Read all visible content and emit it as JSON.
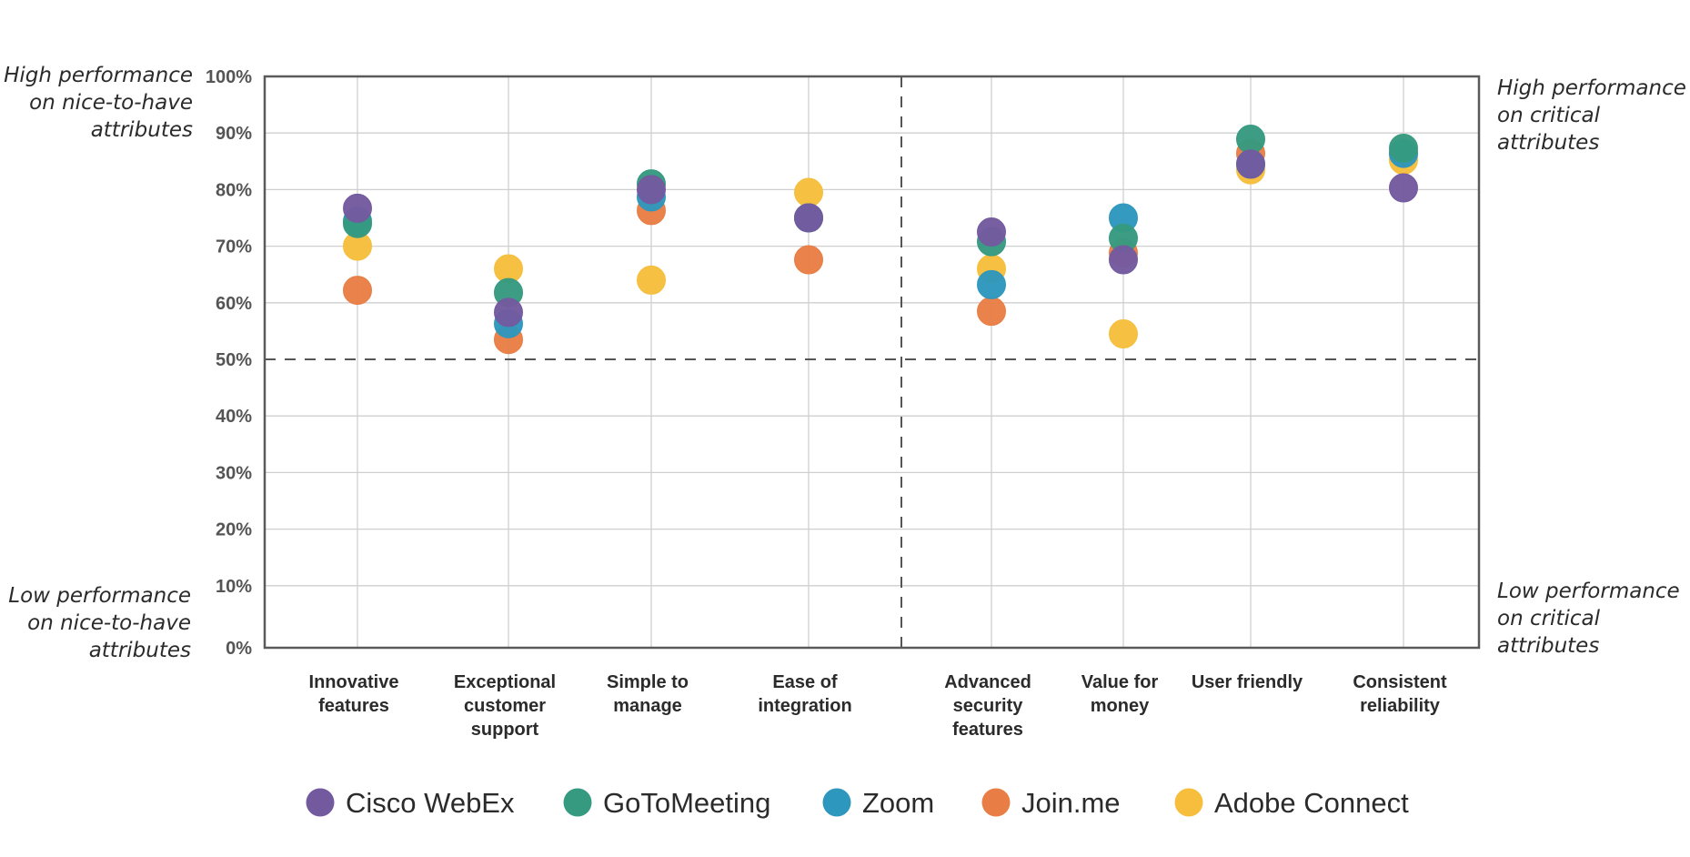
{
  "chart_data": {
    "type": "scatter",
    "title": "",
    "xlabel": "",
    "ylabel": "",
    "ylim": [
      0,
      100
    ],
    "y_ticks": [
      "0%",
      "10%",
      "20%",
      "30%",
      "40%",
      "50%",
      "60%",
      "70%",
      "80%",
      "90%",
      "100%"
    ],
    "grid": true,
    "threshold_y": 50,
    "categories": [
      [
        "Innovative",
        "features"
      ],
      [
        "Exceptional",
        "customer",
        "support"
      ],
      [
        "Simple to",
        "manage"
      ],
      [
        "Ease of",
        "integration"
      ],
      [
        "Advanced",
        "security",
        "features"
      ],
      [
        "Value for",
        "money"
      ],
      [
        "User friendly"
      ],
      [
        "Consistent",
        "reliability"
      ]
    ],
    "category_groups": [
      {
        "name": "nice-to-have",
        "count": 4
      },
      {
        "name": "critical",
        "count": 4
      }
    ],
    "series": [
      {
        "name": "Adobe Connect",
        "color": "#F6BE3C",
        "values": [
          70,
          66,
          64,
          79.5,
          66,
          54.5,
          83.5,
          85.2
        ]
      },
      {
        "name": "Join.me",
        "color": "#E87E45",
        "values": [
          62.2,
          53.5,
          76.3,
          67.6,
          58.5,
          68.8,
          86.4,
          86.4
        ]
      },
      {
        "name": "Zoom",
        "color": "#2E97BD",
        "values": [
          74.4,
          56.3,
          78.7,
          75,
          63.2,
          75,
          84.5,
          86.4
        ]
      },
      {
        "name": "GoToMeeting",
        "color": "#369A80",
        "values": [
          74,
          61.8,
          81,
          75,
          70.8,
          71.4,
          88.9,
          87.3
        ]
      },
      {
        "name": "Cisco WebEx",
        "color": "#735A9F",
        "values": [
          76.7,
          58.3,
          80,
          75,
          72.5,
          67.6,
          84.5,
          80.3
        ]
      }
    ],
    "legend_order": [
      "Cisco WebEx",
      "GoToMeeting",
      "Zoom",
      "Join.me",
      "Adobe Connect"
    ],
    "legend_position": "bottom",
    "annotations": {
      "top_left": [
        "High performance",
        "on nice-to-have",
        "attributes"
      ],
      "bottom_left": [
        "Low performance",
        "on nice-to-have",
        "attributes"
      ],
      "top_right": [
        "High performance",
        "on critical",
        "attributes"
      ],
      "bottom_right": [
        "Low performance",
        "on critical",
        "attributes"
      ]
    }
  }
}
